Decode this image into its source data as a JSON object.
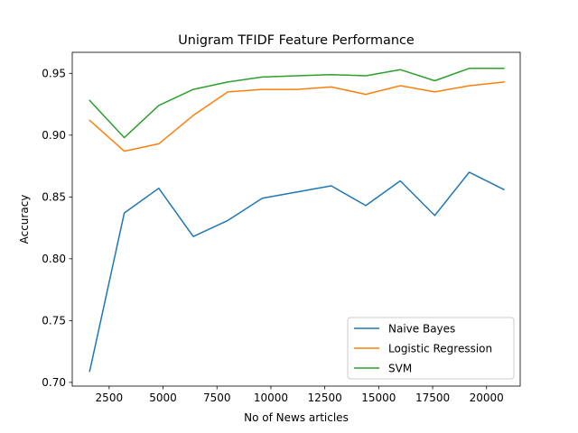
{
  "chart_data": {
    "type": "line",
    "title": "Unigram TFIDF Feature Performance",
    "xlabel": "No of News articles",
    "ylabel": "Accuracy",
    "xlim": [
      790,
      21560
    ],
    "ylim": [
      0.697,
      0.967
    ],
    "xticks": [
      2500,
      5000,
      7500,
      10000,
      12500,
      15000,
      17500,
      20000
    ],
    "yticks": [
      0.7,
      0.75,
      0.8,
      0.85,
      0.9,
      0.95
    ],
    "x": [
      1600,
      3200,
      4800,
      6400,
      8000,
      9600,
      11200,
      12800,
      14400,
      16000,
      17600,
      19200,
      20800
    ],
    "series": [
      {
        "name": "Naive Bayes",
        "color": "#1f77b4",
        "values": [
          0.709,
          0.837,
          0.857,
          0.818,
          0.831,
          0.849,
          0.854,
          0.859,
          0.843,
          0.863,
          0.835,
          0.87,
          0.856
        ]
      },
      {
        "name": "Logistic Regression",
        "color": "#ff7f0e",
        "values": [
          0.912,
          0.887,
          0.893,
          0.916,
          0.935,
          0.937,
          0.937,
          0.939,
          0.933,
          0.94,
          0.935,
          0.94,
          0.943
        ]
      },
      {
        "name": "SVM",
        "color": "#2ca02c",
        "values": [
          0.928,
          0.898,
          0.924,
          0.937,
          0.943,
          0.947,
          0.948,
          0.949,
          0.948,
          0.953,
          0.944,
          0.954,
          0.954
        ]
      }
    ],
    "legend": "lower-right",
    "grid": false
  }
}
